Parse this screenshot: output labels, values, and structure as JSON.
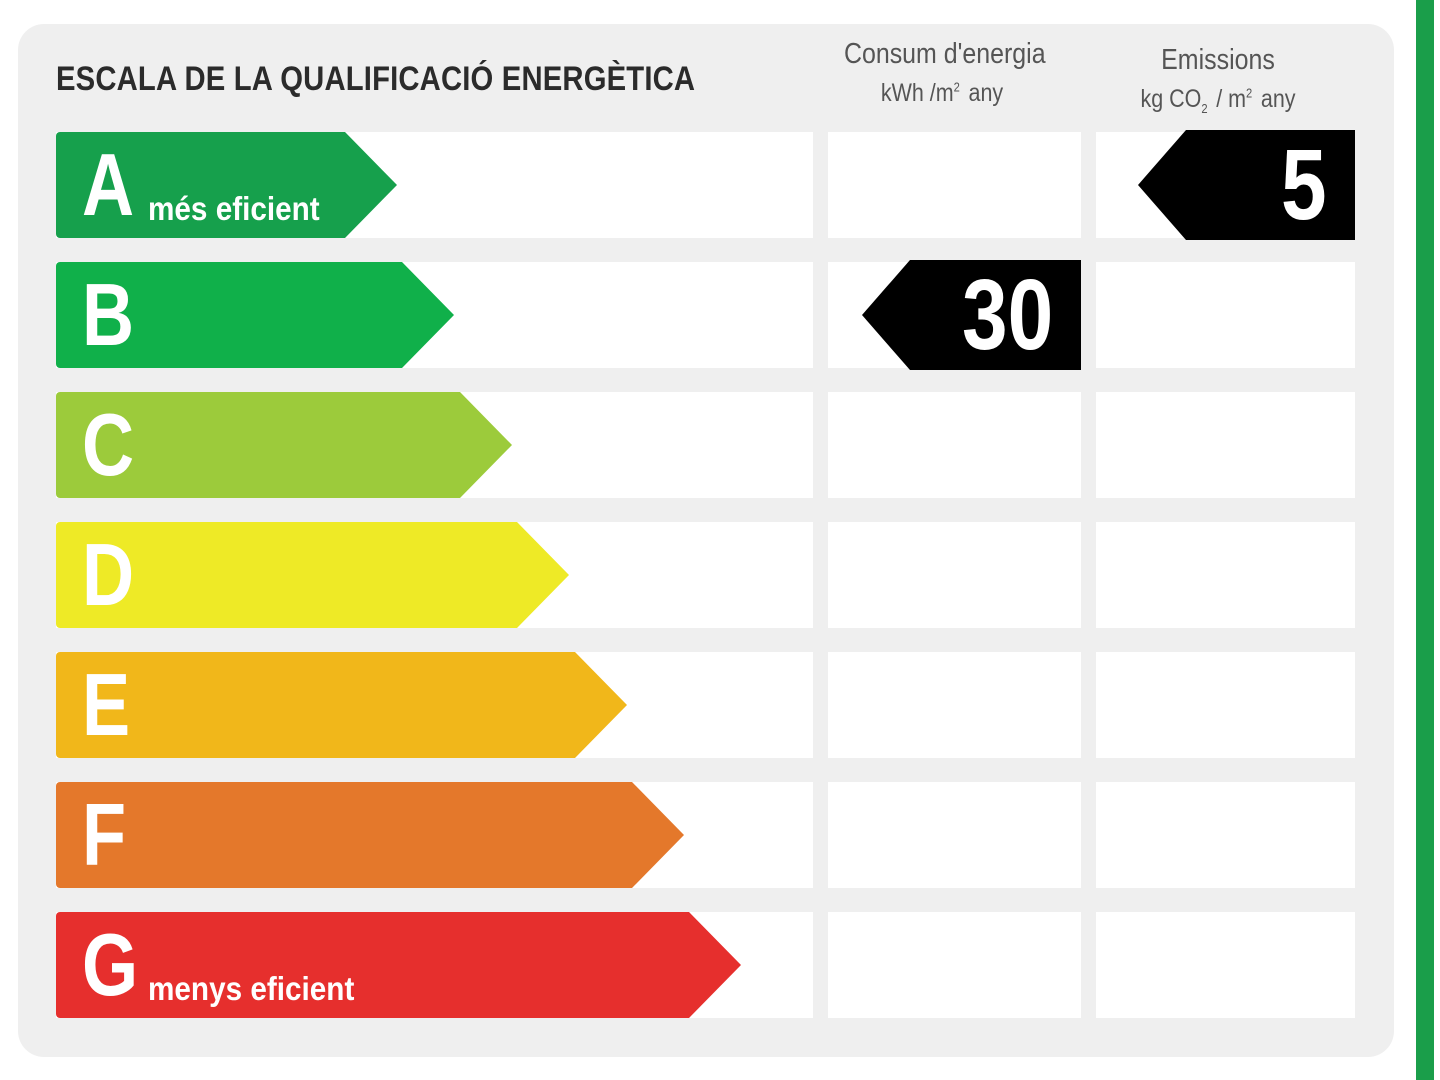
{
  "title": "ESCALA DE LA QUALIFICACIÓ ENERGÈTICA",
  "columns": {
    "consum": {
      "title": "Consum d'energia",
      "unit_a": "kWh /m",
      "unit_sup": "2",
      "unit_b": "any"
    },
    "emissions": {
      "title": "Emissions",
      "unit_a": "kg CO",
      "unit_sub": "2",
      "unit_mid": "/ m",
      "unit_sup": "2",
      "unit_b": "any"
    }
  },
  "classes": [
    {
      "letter": "A",
      "label": "més eficient",
      "color": "#16a04c"
    },
    {
      "letter": "B",
      "label": "",
      "color": "#10b04a"
    },
    {
      "letter": "C",
      "label": "",
      "color": "#9ccb3b"
    },
    {
      "letter": "D",
      "label": "",
      "color": "#eeea26"
    },
    {
      "letter": "E",
      "label": "",
      "color": "#f1b71a"
    },
    {
      "letter": "F",
      "label": "",
      "color": "#e4782b"
    },
    {
      "letter": "G",
      "label": "menys eficient",
      "color": "#e62f2d"
    }
  ],
  "ratings": {
    "consum": {
      "class": "B",
      "value": "30"
    },
    "emissions": {
      "class": "A",
      "value": "5"
    }
  },
  "colors": {
    "panel": "#efefef",
    "stripe": "#1a9e4a",
    "marker": "#000000"
  }
}
